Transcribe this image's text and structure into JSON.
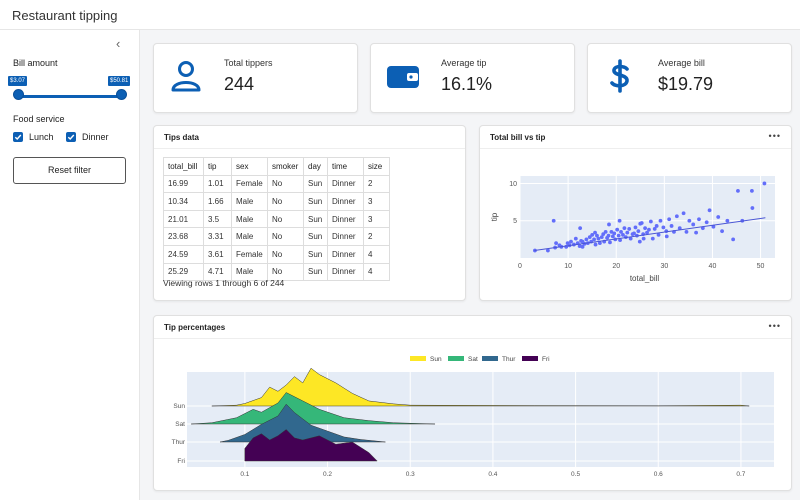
{
  "app": {
    "title": "Restaurant tipping"
  },
  "sidebar": {
    "bill_label": "Bill amount",
    "slider": {
      "min_label": "$3.07",
      "max_label": "$50.81"
    },
    "food_label": "Food service",
    "options": [
      {
        "label": "Lunch",
        "checked": true
      },
      {
        "label": "Dinner",
        "checked": true
      }
    ],
    "reset_label": "Reset filter",
    "collapse_glyph": "‹"
  },
  "kpis": [
    {
      "label": "Total tippers",
      "value": "244",
      "icon": "user-icon"
    },
    {
      "label": "Average tip",
      "value": "16.1%",
      "icon": "wallet-icon"
    },
    {
      "label": "Average bill",
      "value": "$19.79",
      "icon": "dollar-icon"
    }
  ],
  "accent": "#0c5fb4",
  "tips_card": {
    "title": "Tips data",
    "columns": [
      "total_bill",
      "tip",
      "sex",
      "smoker",
      "day",
      "time",
      "size"
    ],
    "rows": [
      [
        "16.99",
        "1.01",
        "Female",
        "No",
        "Sun",
        "Dinner",
        "2"
      ],
      [
        "10.34",
        "1.66",
        "Male",
        "No",
        "Sun",
        "Dinner",
        "3"
      ],
      [
        "21.01",
        "3.5",
        "Male",
        "No",
        "Sun",
        "Dinner",
        "3"
      ],
      [
        "23.68",
        "3.31",
        "Male",
        "No",
        "Sun",
        "Dinner",
        "2"
      ],
      [
        "24.59",
        "3.61",
        "Female",
        "No",
        "Sun",
        "Dinner",
        "4"
      ],
      [
        "25.29",
        "4.71",
        "Male",
        "No",
        "Sun",
        "Dinner",
        "4"
      ]
    ],
    "footer": "Viewing rows 1 through 6 of 244"
  },
  "scatter_card": {
    "title": "Total bill vs tip",
    "menu": "•••"
  },
  "ridge_card": {
    "title": "Tip percentages",
    "menu": "•••"
  },
  "chart_data": [
    {
      "type": "scatter",
      "xlabel": "total_bill",
      "ylabel": "tip",
      "xlim": [
        0,
        53
      ],
      "ylim": [
        0,
        11
      ],
      "xticks": [
        0,
        10,
        20,
        30,
        40,
        50
      ],
      "yticks": [
        5,
        10
      ],
      "points_color": "#636efa",
      "trendline": {
        "x": [
          3,
          51
        ],
        "y": [
          1.0,
          5.4
        ]
      },
      "points": [
        [
          3.1,
          1
        ],
        [
          5.8,
          1
        ],
        [
          7.3,
          1.4
        ],
        [
          7.5,
          2
        ],
        [
          8.2,
          1.7
        ],
        [
          8.6,
          1.5
        ],
        [
          9.6,
          1.5
        ],
        [
          9.9,
          2
        ],
        [
          10.3,
          1.7
        ],
        [
          10.6,
          2.2
        ],
        [
          11.2,
          1.8
        ],
        [
          11.6,
          2.6
        ],
        [
          12.0,
          2
        ],
        [
          12.4,
          1.6
        ],
        [
          12.7,
          2.3
        ],
        [
          13.0,
          2.2
        ],
        [
          13.4,
          1.9
        ],
        [
          13.8,
          2.5
        ],
        [
          14.1,
          2
        ],
        [
          14.5,
          2.8
        ],
        [
          14.8,
          2.2
        ],
        [
          15.0,
          3.1
        ],
        [
          15.4,
          2.5
        ],
        [
          15.7,
          1.8
        ],
        [
          16.0,
          3
        ],
        [
          16.3,
          2.6
        ],
        [
          16.6,
          2
        ],
        [
          17.0,
          2.8
        ],
        [
          17.3,
          3.2
        ],
        [
          17.5,
          2.2
        ],
        [
          17.8,
          3.5
        ],
        [
          18.1,
          2.7
        ],
        [
          18.4,
          3
        ],
        [
          18.7,
          2.1
        ],
        [
          19.0,
          3.5
        ],
        [
          19.3,
          2.9
        ],
        [
          19.6,
          3.3
        ],
        [
          19.8,
          2.5
        ],
        [
          20.2,
          3.8
        ],
        [
          20.5,
          3
        ],
        [
          20.8,
          2.4
        ],
        [
          21.0,
          3.5
        ],
        [
          21.4,
          3.1
        ],
        [
          21.7,
          4
        ],
        [
          22.0,
          2.8
        ],
        [
          22.3,
          3.4
        ],
        [
          22.7,
          3.9
        ],
        [
          23.0,
          2.6
        ],
        [
          23.4,
          3.2
        ],
        [
          23.7,
          3.3
        ],
        [
          24.0,
          4.1
        ],
        [
          24.3,
          3
        ],
        [
          24.6,
          3.6
        ],
        [
          25.0,
          4.6
        ],
        [
          25.3,
          4.7
        ],
        [
          25.6,
          3.2
        ],
        [
          26.0,
          4
        ],
        [
          26.4,
          3.4
        ],
        [
          26.8,
          3.8
        ],
        [
          27.2,
          4.9
        ],
        [
          27.6,
          2.6
        ],
        [
          28.0,
          3.9
        ],
        [
          28.4,
          4.3
        ],
        [
          28.8,
          3.1
        ],
        [
          29.2,
          5
        ],
        [
          29.8,
          4.1
        ],
        [
          30.4,
          3.6
        ],
        [
          31.0,
          5.2
        ],
        [
          31.5,
          4.3
        ],
        [
          32.0,
          3.5
        ],
        [
          32.6,
          5.6
        ],
        [
          33.2,
          4
        ],
        [
          34.0,
          6
        ],
        [
          34.6,
          3.5
        ],
        [
          35.2,
          5
        ],
        [
          36.0,
          4.5
        ],
        [
          36.6,
          3.4
        ],
        [
          37.2,
          5.2
        ],
        [
          38.0,
          4
        ],
        [
          38.8,
          4.8
        ],
        [
          39.4,
          6.4
        ],
        [
          40.2,
          4.2
        ],
        [
          41.2,
          5.5
        ],
        [
          42.0,
          3.6
        ],
        [
          43.1,
          5
        ],
        [
          44.3,
          2.5
        ],
        [
          45.3,
          9
        ],
        [
          46.2,
          5
        ],
        [
          48.2,
          9
        ],
        [
          48.3,
          6.7
        ],
        [
          50.8,
          10
        ],
        [
          30.5,
          2.9
        ],
        [
          25.7,
          2.6
        ],
        [
          12.5,
          4
        ],
        [
          7.0,
          5
        ],
        [
          18.5,
          4.5
        ],
        [
          20.7,
          5
        ],
        [
          15.6,
          3.4
        ],
        [
          13.0,
          1.5
        ],
        [
          24.9,
          2.2
        ]
      ]
    },
    {
      "type": "area",
      "legend_position": "top",
      "categories": [
        "Sun",
        "Sat",
        "Thur",
        "Fri"
      ],
      "xlim": [
        0.03,
        0.74
      ],
      "xticks": [
        0.1,
        0.2,
        0.3,
        0.4,
        0.5,
        0.6,
        0.7
      ],
      "series": [
        {
          "name": "Sun",
          "color": "#fde725",
          "range": [
            0.06,
            0.71
          ],
          "density": [
            [
              0.06,
              0
            ],
            [
              0.09,
              0.02
            ],
            [
              0.1,
              0.06
            ],
            [
              0.12,
              0.2
            ],
            [
              0.13,
              0.45
            ],
            [
              0.14,
              0.35
            ],
            [
              0.15,
              0.5
            ],
            [
              0.16,
              0.7
            ],
            [
              0.17,
              0.55
            ],
            [
              0.18,
              0.9
            ],
            [
              0.19,
              0.75
            ],
            [
              0.21,
              0.55
            ],
            [
              0.23,
              0.3
            ],
            [
              0.25,
              0.12
            ],
            [
              0.28,
              0.05
            ],
            [
              0.3,
              0.02
            ],
            [
              0.45,
              0.01
            ],
            [
              0.6,
              0.005
            ],
            [
              0.7,
              0.02
            ],
            [
              0.71,
              0
            ]
          ]
        },
        {
          "name": "Sat",
          "color": "#35b779",
          "range": [
            0.035,
            0.33
          ],
          "density": [
            [
              0.035,
              0
            ],
            [
              0.06,
              0.03
            ],
            [
              0.09,
              0.15
            ],
            [
              0.11,
              0.35
            ],
            [
              0.12,
              0.28
            ],
            [
              0.14,
              0.5
            ],
            [
              0.15,
              0.75
            ],
            [
              0.17,
              0.55
            ],
            [
              0.19,
              0.35
            ],
            [
              0.22,
              0.15
            ],
            [
              0.25,
              0.08
            ],
            [
              0.28,
              0.03
            ],
            [
              0.33,
              0
            ]
          ]
        },
        {
          "name": "Thur",
          "color": "#31688e",
          "range": [
            0.07,
            0.27
          ],
          "density": [
            [
              0.07,
              0
            ],
            [
              0.08,
              0.04
            ],
            [
              0.1,
              0.18
            ],
            [
              0.12,
              0.42
            ],
            [
              0.14,
              0.62
            ],
            [
              0.15,
              0.9
            ],
            [
              0.16,
              0.7
            ],
            [
              0.18,
              0.4
            ],
            [
              0.2,
              0.26
            ],
            [
              0.22,
              0.12
            ],
            [
              0.24,
              0.06
            ],
            [
              0.27,
              0
            ]
          ]
        },
        {
          "name": "Fri",
          "color": "#440154",
          "range": [
            0.1,
            0.26
          ],
          "density": [
            [
              0.1,
              0
            ],
            [
              0.1,
              0.3
            ],
            [
              0.11,
              0.55
            ],
            [
              0.12,
              0.65
            ],
            [
              0.13,
              0.5
            ],
            [
              0.14,
              0.6
            ],
            [
              0.15,
              0.75
            ],
            [
              0.16,
              0.55
            ],
            [
              0.17,
              0.5
            ],
            [
              0.19,
              0.6
            ],
            [
              0.21,
              0.4
            ],
            [
              0.23,
              0.45
            ],
            [
              0.25,
              0.2
            ],
            [
              0.26,
              0
            ]
          ]
        }
      ]
    }
  ]
}
